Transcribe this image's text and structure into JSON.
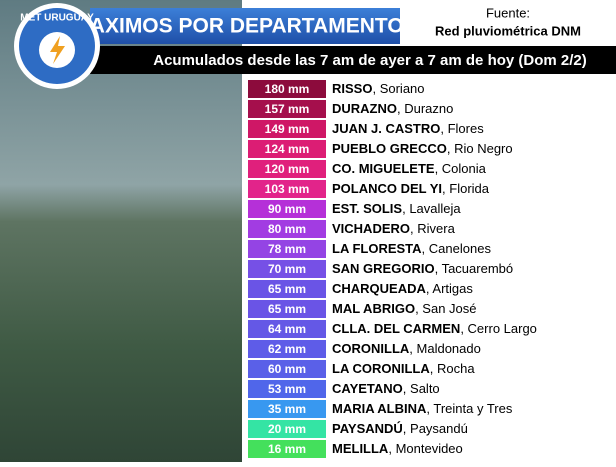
{
  "header": {
    "logo": "MET URUGUAY",
    "title": "MAXIMOS POR DEPARTAMENTOS",
    "source_label": "Fuente:",
    "source": "Red pluviométrica DNM",
    "subtitle": "Acumulados desde las 7 am de ayer a 7 am de hoy (Dom 2/2)"
  },
  "table": {
    "rows": [
      {
        "amount": "180 mm",
        "station": "RISSO",
        "department": "Soriano",
        "color": "#8c0b3c"
      },
      {
        "amount": "157 mm",
        "station": "DURAZNO",
        "department": "Durazno",
        "color": "#a50f4c"
      },
      {
        "amount": "149 mm",
        "station": "JUAN J. CASTRO",
        "department": "Flores",
        "color": "#cf1766"
      },
      {
        "amount": "124 mm",
        "station": "PUEBLO GRECCO",
        "department": "Rio Negro",
        "color": "#dc1d74"
      },
      {
        "amount": "120 mm",
        "station": "CO. MIGUELETE",
        "department": "Colonia",
        "color": "#e0207c"
      },
      {
        "amount": "103 mm",
        "station": "POLANCO DEL YI",
        "department": "Florida",
        "color": "#e2248a"
      },
      {
        "amount": "90 mm",
        "station": "EST. SOLIS",
        "department": "Lavalleja",
        "color": "#b530d8"
      },
      {
        "amount": "80 mm",
        "station": "VICHADERO",
        "department": "Rivera",
        "color": "#a23ce2"
      },
      {
        "amount": "78 mm",
        "station": "LA FLORESTA",
        "department": "Canelones",
        "color": "#9444e4"
      },
      {
        "amount": "70 mm",
        "station": "SAN GREGORIO",
        "department": "Tacuarembó",
        "color": "#7650e6"
      },
      {
        "amount": "65 mm",
        "station": "CHARQUEADA",
        "department": "Artigas",
        "color": "#6a54e6"
      },
      {
        "amount": "65 mm",
        "station": "MAL ABRIGO",
        "department": "San José",
        "color": "#6a54e6"
      },
      {
        "amount": "64 mm",
        "station": "CLLA. DEL CARMEN",
        "department": "Cerro Largo",
        "color": "#6458e6"
      },
      {
        "amount": "62 mm",
        "station": "CORONILLA",
        "department": "Maldonado",
        "color": "#5e5ce8"
      },
      {
        "amount": "60 mm",
        "station": "LA CORONILLA",
        "department": "Rocha",
        "color": "#5a60e8"
      },
      {
        "amount": "53 mm",
        "station": "CAYETANO",
        "department": "Salto",
        "color": "#5066ea"
      },
      {
        "amount": "35 mm",
        "station": "MARIA ALBINA",
        "department": "Treinta y Tres",
        "color": "#3898f0"
      },
      {
        "amount": "20 mm",
        "station": "PAYSANDÚ",
        "department": "Paysandú",
        "color": "#34e4a4"
      },
      {
        "amount": "16 mm",
        "station": "MELILLA",
        "department": "Montevideo",
        "color": "#44e05c"
      }
    ]
  }
}
